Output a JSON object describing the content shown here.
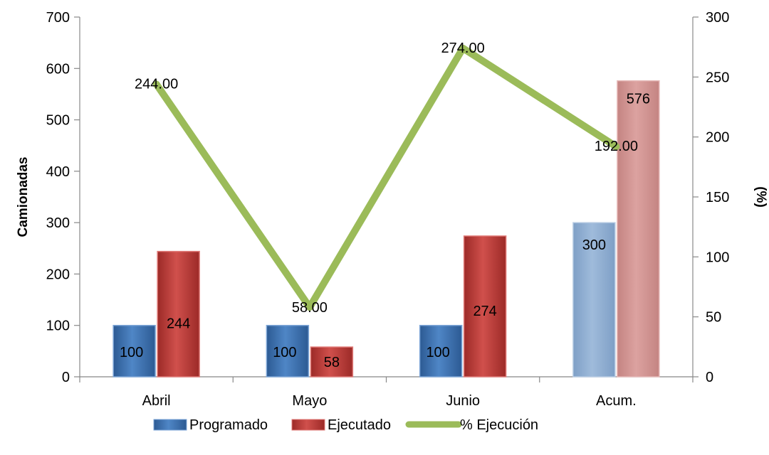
{
  "chart_data": {
    "type": "bar",
    "categories": [
      "Abril",
      "Mayo",
      "Junio",
      "Acum."
    ],
    "ylabel": "Camionadas",
    "y2label": "(%)",
    "ylim": [
      0,
      700
    ],
    "y2lim": [
      0,
      300
    ],
    "yticks": [
      "0",
      "100",
      "200",
      "300",
      "400",
      "500",
      "600",
      "700"
    ],
    "y2ticks": [
      "0",
      "50",
      "100",
      "150",
      "200",
      "250",
      "300"
    ],
    "grid": false,
    "legend_position": "bottom",
    "series": [
      {
        "name": "Programado",
        "kind": "bar",
        "axis": "left",
        "values": [
          100,
          100,
          100,
          300
        ],
        "labels": [
          "100",
          "100",
          "100",
          "300"
        ],
        "color": "#4a7ebb",
        "highlight_color": "#95b3d7"
      },
      {
        "name": "Ejecutado",
        "kind": "bar",
        "axis": "left",
        "values": [
          244,
          58,
          274,
          576
        ],
        "labels": [
          "244",
          "58",
          "274",
          "576"
        ],
        "color": "#c0504d",
        "highlight_color": "#d99694"
      },
      {
        "name": "% Ejecución",
        "kind": "line",
        "axis": "right",
        "values": [
          244,
          58,
          274,
          192
        ],
        "labels": [
          "244.00",
          "58.00",
          "274.00",
          "192.00"
        ],
        "color": "#9bbb59"
      }
    ]
  }
}
